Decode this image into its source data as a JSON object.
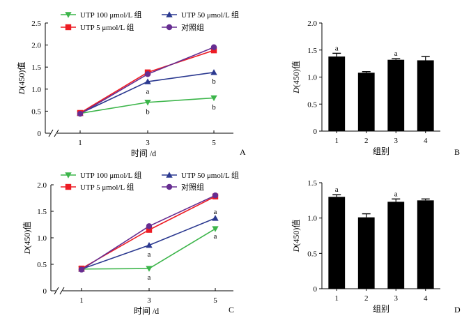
{
  "chart_data": [
    {
      "panel": "A",
      "type": "line",
      "x": [
        1,
        3,
        5
      ],
      "xlabel": "时间 /d",
      "ylabel_prefix": "D",
      "ylabel_suffix": "(450)值",
      "ylim": [
        0,
        2.5
      ],
      "yticks": [
        "0",
        "0.5",
        "1.0",
        "1.5",
        "2.0",
        "2.5"
      ],
      "xticks": [
        "1",
        "3",
        "5"
      ],
      "series": [
        {
          "name": "UTP 100 μmol/L 组",
          "values": [
            0.45,
            0.7,
            0.8
          ],
          "color": "#3cb54a",
          "marker": "triangle-down"
        },
        {
          "name": "UTP 50 μmol/L 组",
          "values": [
            0.45,
            1.17,
            1.38
          ],
          "color": "#2b3990",
          "marker": "triangle-up"
        },
        {
          "name": "UTP 5 μmol/L 组",
          "values": [
            0.46,
            1.38,
            1.88
          ],
          "color": "#ed1c24",
          "marker": "square"
        },
        {
          "name": "对照组",
          "values": [
            0.44,
            1.34,
            1.95
          ],
          "color": "#662d91",
          "marker": "circle"
        }
      ],
      "annotations": [
        {
          "text": "a",
          "x": 3,
          "y": 0.96
        },
        {
          "text": "b",
          "x": 3,
          "y": 0.5
        },
        {
          "text": "b",
          "x": 5,
          "y": 1.19
        },
        {
          "text": "b",
          "x": 5,
          "y": 0.6
        }
      ]
    },
    {
      "panel": "B",
      "type": "bar",
      "categories": [
        "1",
        "2",
        "3",
        "4"
      ],
      "values": [
        1.38,
        1.08,
        1.32,
        1.31
      ],
      "errors": [
        0.06,
        0.02,
        0.02,
        0.07
      ],
      "xlabel": "组别",
      "ylabel_prefix": "D",
      "ylabel_suffix": "(450)值",
      "ylim": [
        0,
        2.0
      ],
      "yticks": [
        "0",
        "0.5",
        "1.0",
        "1.5",
        "2.0"
      ],
      "annotations": [
        {
          "text": "a",
          "category": 0
        },
        {
          "text": "a",
          "category": 2
        }
      ]
    },
    {
      "panel": "C",
      "type": "line",
      "x": [
        1,
        3,
        5
      ],
      "xlabel": "时间 /d",
      "ylabel_prefix": "D",
      "ylabel_suffix": "(450)值",
      "ylim": [
        0,
        2.0
      ],
      "yticks": [
        "0",
        "0.5",
        "1.0",
        "1.5",
        "2.0"
      ],
      "xticks": [
        "1",
        "3",
        "5"
      ],
      "series": [
        {
          "name": "UTP 100 μmol/L 组",
          "values": [
            0.41,
            0.42,
            1.17
          ],
          "color": "#3cb54a",
          "marker": "triangle-down"
        },
        {
          "name": "UTP 50 μmol/L 组",
          "values": [
            0.41,
            0.86,
            1.37
          ],
          "color": "#2b3990",
          "marker": "triangle-up"
        },
        {
          "name": "UTP 5 μmol/L 组",
          "values": [
            0.42,
            1.15,
            1.78
          ],
          "color": "#ed1c24",
          "marker": "square"
        },
        {
          "name": "对照组",
          "values": [
            0.4,
            1.22,
            1.8
          ],
          "color": "#662d91",
          "marker": "circle"
        }
      ],
      "annotations": [
        {
          "text": "a",
          "x": 3,
          "y": 0.7
        },
        {
          "text": "a",
          "x": 3,
          "y": 0.26
        },
        {
          "text": "a",
          "x": 5,
          "y": 1.5
        },
        {
          "text": "a",
          "x": 5,
          "y": 1.04
        }
      ]
    },
    {
      "panel": "D",
      "type": "bar",
      "categories": [
        "1",
        "2",
        "3",
        "4"
      ],
      "values": [
        1.3,
        1.01,
        1.23,
        1.25
      ],
      "errors": [
        0.03,
        0.05,
        0.04,
        0.02
      ],
      "xlabel": "组别",
      "ylabel_prefix": "D",
      "ylabel_suffix": "(450)值",
      "ylim": [
        0,
        1.5
      ],
      "yticks": [
        "0",
        "0.5",
        "1.0",
        "1.5"
      ],
      "annotations": [
        {
          "text": "a",
          "category": 0
        },
        {
          "text": "a",
          "category": 2
        }
      ]
    }
  ]
}
